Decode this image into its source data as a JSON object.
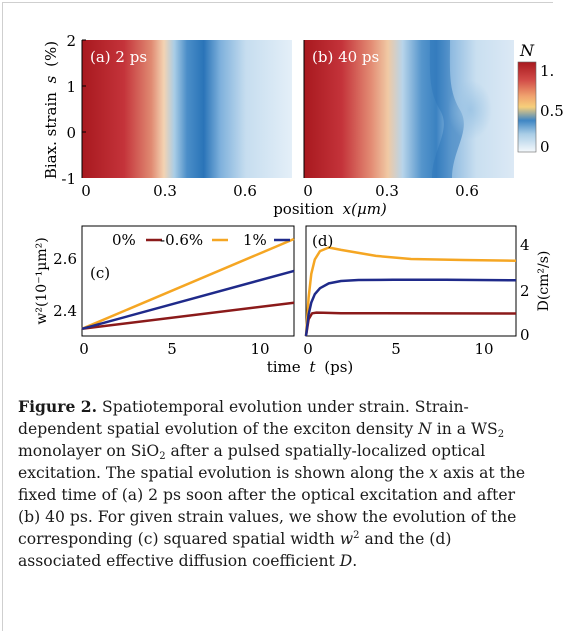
{
  "chart_data": [
    {
      "type": "heatmap",
      "panel_label": "(a) 2 ps",
      "ylabel": "Biax. strain",
      "ylabel_symbol": "s",
      "ylabel_unit": "(%)",
      "yticks": [
        "2",
        "1",
        "0",
        "-1"
      ],
      "xticks": [
        "0",
        "0.3",
        "0.6"
      ],
      "xlim": [
        0,
        0.8
      ],
      "ylim": [
        -1,
        2
      ]
    },
    {
      "type": "heatmap",
      "panel_label": "(b) 40 ps",
      "xticks": [
        "0",
        "0.3",
        "0.6"
      ],
      "xlim": [
        0,
        0.8
      ],
      "ylim": [
        -1,
        2
      ],
      "colorbar": {
        "label": "N",
        "ticks": [
          "1.",
          "0.5",
          "0"
        ]
      }
    },
    {
      "type": "line",
      "panel_label": "(c)",
      "xlabel": "time",
      "xlabel_symbol": "t",
      "xlabel_unit": "(ps)",
      "ylabel": "w²(10⁻¹µm²)",
      "xlim": [
        0,
        12
      ],
      "ylim": [
        2.32,
        2.7
      ],
      "xticks": [
        "0",
        "5",
        "10"
      ],
      "yticks": [
        "2.6",
        "2.4"
      ],
      "legend": [
        "0%",
        "-0.6%",
        "1%"
      ],
      "series": [
        {
          "name": "0%",
          "color": "#8b1a1a",
          "x": [
            0,
            12
          ],
          "y": [
            2.345,
            2.435
          ]
        },
        {
          "name": "-0.6%",
          "color": "#f5a623",
          "x": [
            0,
            12
          ],
          "y": [
            2.345,
            2.655
          ]
        },
        {
          "name": "1%",
          "color": "#1f2a8a",
          "x": [
            0,
            12
          ],
          "y": [
            2.345,
            2.545
          ]
        }
      ]
    },
    {
      "type": "line",
      "panel_label": "(d)",
      "ylabel": "D(cm²/s)",
      "xlim": [
        0,
        12
      ],
      "ylim": [
        0,
        4.6
      ],
      "xticks": [
        "0",
        "5",
        "10"
      ],
      "yticks": [
        "4",
        "2",
        "0"
      ],
      "series": [
        {
          "name": "0%",
          "color": "#8b1a1a",
          "x": [
            0,
            0.15,
            0.35,
            0.6,
            1,
            2,
            4,
            12
          ],
          "y": [
            0,
            0.7,
            0.95,
            0.98,
            0.97,
            0.95,
            0.95,
            0.94
          ]
        },
        {
          "name": "-0.6%",
          "color": "#f5a623",
          "x": [
            0,
            0.15,
            0.3,
            0.5,
            0.8,
            1.3,
            2,
            4,
            6,
            9,
            12
          ],
          "y": [
            0,
            1.6,
            2.6,
            3.2,
            3.55,
            3.7,
            3.6,
            3.35,
            3.22,
            3.18,
            3.15
          ]
        },
        {
          "name": "1%",
          "color": "#1f2a8a",
          "x": [
            0,
            0.15,
            0.3,
            0.5,
            0.8,
            1.3,
            2,
            3,
            5,
            8,
            12
          ],
          "y": [
            0,
            0.9,
            1.4,
            1.75,
            2.0,
            2.2,
            2.3,
            2.34,
            2.35,
            2.35,
            2.33
          ]
        }
      ]
    }
  ],
  "figure": {
    "x_axis_shared": "position",
    "x_axis_shared_unit": "x(µm)"
  },
  "caption": {
    "label": "Figure 2.",
    "p1": " Spatiotemporal evolution under strain. Strain-dependent spatial evolution of the exciton density ",
    "N": "N",
    "p2": " in a WS",
    "sub2": "2",
    "p3": " monolayer on SiO",
    "sub3": "2",
    "p4": " after a pulsed spatially-localized optical excitation. The spatial evolution is shown along the ",
    "x": "x",
    "p5": " axis at the fixed time of (a) 2 ps soon after the optical excitation and after (b) 40 ps. For given strain values, we show the evolution of the corresponding (c) squared spatial width ",
    "w": "w",
    "sup2": "2",
    "p6": " and the (d) associated effective diffusion coefficient ",
    "D": "D",
    "p7": "."
  }
}
